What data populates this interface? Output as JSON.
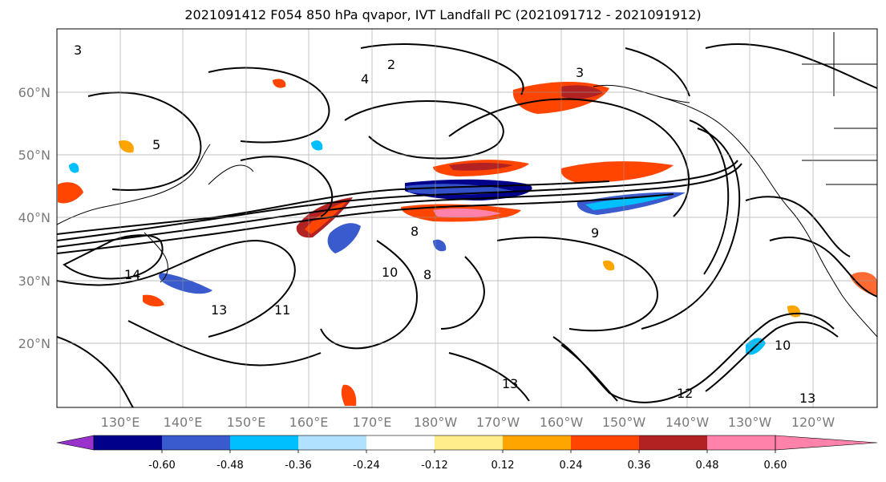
{
  "title": "2021091412 F054 850 hPa qvapor, IVT Landfall PC (2021091712 - 2021091912)",
  "map": {
    "lon_labels": [
      "130°E",
      "140°E",
      "150°E",
      "160°E",
      "170°E",
      "180°W",
      "170°W",
      "160°W",
      "150°W",
      "140°W",
      "130°W",
      "120°W"
    ],
    "lat_labels": [
      "60°N",
      "50°N",
      "40°N",
      "30°N",
      "20°N"
    ],
    "contour_labels": [
      "2",
      "3",
      "3",
      "4",
      "5",
      "8",
      "8",
      "9",
      "10",
      "10",
      "11",
      "12",
      "13",
      "13",
      "13",
      "14"
    ]
  },
  "colorbar": {
    "colors": [
      "#9932cc",
      "#00008b",
      "#3a5bcd",
      "#00bfff",
      "#b0e2ff",
      "#ffffff",
      "#ffec8b",
      "#ffa500",
      "#ff4500",
      "#b22222",
      "#ff82ab"
    ],
    "tick_labels": [
      "-0.60",
      "-0.48",
      "-0.36",
      "-0.24",
      "-0.12",
      "0.12",
      "0.24",
      "0.36",
      "0.48",
      "0.60"
    ]
  }
}
